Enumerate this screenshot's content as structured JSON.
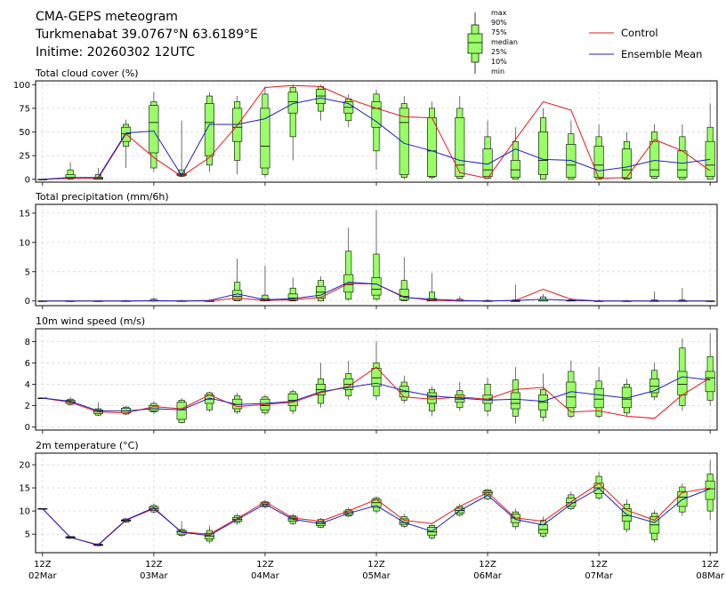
{
  "header": {
    "line1": "CMA-GEPS meteogram",
    "line2": "Turkmenabat 39.0767°N 63.6189°E",
    "line3": "Initime: 20260302 12UTC"
  },
  "legend": {
    "box_labels": [
      "max",
      "90%",
      "75%",
      "median",
      "25%",
      "10%",
      "min"
    ],
    "control_label": "Control",
    "mean_label": "Ensemble Mean"
  },
  "colors": {
    "box_fill": "#99ff66",
    "control": "#e31a1c",
    "mean": "#1f1fbf",
    "grid": "#cccccc"
  },
  "chart_data": {
    "type": "boxplot-meteogram",
    "x_unit": "hours since 2026-03-02 12UTC (6-hourly)",
    "xlim": [
      -1.5,
      145.5
    ],
    "x_ticks": [
      {
        "x": 0,
        "label1": "12Z",
        "label2": "02Mar"
      },
      {
        "x": 24,
        "label1": "12Z",
        "label2": "03Mar"
      },
      {
        "x": 48,
        "label1": "12Z",
        "label2": "04Mar"
      },
      {
        "x": 72,
        "label1": "12Z",
        "label2": "05Mar"
      },
      {
        "x": 96,
        "label1": "12Z",
        "label2": "06Mar"
      },
      {
        "x": 120,
        "label1": "12Z",
        "label2": "07Mar"
      },
      {
        "x": 144,
        "label1": "12Z",
        "label2": "08Mar"
      }
    ],
    "hours": [
      0,
      6,
      12,
      18,
      24,
      30,
      36,
      42,
      48,
      54,
      60,
      66,
      72,
      78,
      84,
      90,
      96,
      102,
      108,
      114,
      120,
      126,
      132,
      138,
      144
    ],
    "panels": [
      {
        "title": "Total cloud cover (%)",
        "ylim": [
          -3,
          104
        ],
        "yticks": [
          0,
          25,
          50,
          75,
          100
        ],
        "boxes": [
          [
            0,
            0,
            0,
            0,
            0,
            0,
            0
          ],
          [
            0,
            0,
            1,
            2,
            5,
            10,
            18
          ],
          [
            0,
            0,
            0,
            1,
            2,
            5,
            12
          ],
          [
            12,
            35,
            40,
            48,
            55,
            58,
            63
          ],
          [
            8,
            12,
            28,
            60,
            78,
            82,
            92
          ],
          [
            2,
            3,
            4,
            5,
            6,
            10,
            62
          ],
          [
            8,
            15,
            25,
            60,
            80,
            88,
            92
          ],
          [
            5,
            20,
            40,
            55,
            75,
            82,
            88
          ],
          [
            2,
            5,
            12,
            35,
            75,
            90,
            98
          ],
          [
            20,
            45,
            70,
            82,
            92,
            97,
            100
          ],
          [
            62,
            72,
            80,
            88,
            95,
            98,
            100
          ],
          [
            55,
            62,
            70,
            76,
            82,
            85,
            90
          ],
          [
            10,
            30,
            55,
            75,
            82,
            90,
            95
          ],
          [
            0,
            2,
            5,
            60,
            75,
            80,
            88
          ],
          [
            0,
            2,
            3,
            30,
            65,
            75,
            82
          ],
          [
            0,
            1,
            3,
            15,
            65,
            75,
            88
          ],
          [
            0,
            1,
            3,
            10,
            32,
            45,
            62
          ],
          [
            0,
            0,
            2,
            10,
            20,
            40,
            55
          ],
          [
            0,
            0,
            5,
            20,
            50,
            65,
            75
          ],
          [
            0,
            0,
            2,
            15,
            37,
            48,
            62
          ],
          [
            0,
            0,
            2,
            15,
            35,
            45,
            58
          ],
          [
            0,
            0,
            1,
            10,
            32,
            40,
            50
          ],
          [
            0,
            1,
            3,
            10,
            40,
            50,
            58
          ],
          [
            0,
            0,
            2,
            10,
            30,
            45,
            58
          ],
          [
            0,
            0,
            3,
            15,
            40,
            55,
            80
          ]
        ],
        "control": [
          0,
          1,
          1,
          48,
          23,
          3,
          23,
          57,
          97,
          99,
          98,
          85,
          75,
          66,
          65,
          7,
          1,
          42,
          82,
          73,
          1,
          2,
          42,
          30,
          9
        ],
        "mean": [
          0,
          2,
          2,
          49,
          51,
          4,
          58,
          58,
          64,
          80,
          86,
          80,
          61,
          38,
          30,
          20,
          16,
          32,
          21,
          20,
          9,
          13,
          20,
          17,
          21
        ]
      },
      {
        "title": "Total precipitation (mm/6h)",
        "ylim": [
          -0.8,
          16.5
        ],
        "yticks": [
          0,
          5,
          10,
          15
        ],
        "boxes": [
          [
            0,
            0,
            0,
            0,
            0,
            0,
            0
          ],
          [
            0,
            0,
            0,
            0,
            0,
            0,
            0.05
          ],
          [
            0,
            0,
            0,
            0,
            0,
            0,
            0.1
          ],
          [
            0,
            0,
            0,
            0,
            0,
            0.05,
            0.2
          ],
          [
            0,
            0,
            0,
            0,
            0.1,
            0.3,
            0.6
          ],
          [
            0,
            0,
            0,
            0,
            0,
            0.05,
            0.2
          ],
          [
            0,
            0,
            0,
            0,
            0,
            0,
            0.3
          ],
          [
            0,
            0,
            0.2,
            0.8,
            1.8,
            3.2,
            7.2
          ],
          [
            0,
            0,
            0,
            0.1,
            0.4,
            1,
            6
          ],
          [
            0,
            0,
            0.1,
            0.5,
            1.2,
            2.2,
            4
          ],
          [
            0,
            0,
            0.5,
            1.5,
            2.5,
            3.5,
            4.2
          ],
          [
            0,
            0.3,
            1.5,
            2.8,
            4.5,
            8.5,
            12.5
          ],
          [
            0,
            0.3,
            1,
            2,
            4,
            8,
            15.5
          ],
          [
            0,
            0,
            0.2,
            0.8,
            2,
            3.5,
            7.5
          ],
          [
            0,
            0,
            0,
            0.1,
            0.4,
            1.5,
            4.8
          ],
          [
            0,
            0,
            0,
            0,
            0.1,
            0.3,
            0.8
          ],
          [
            0,
            0,
            0,
            0,
            0,
            0.1,
            0.3
          ],
          [
            0,
            0,
            0,
            0,
            0,
            0.2,
            2.8
          ],
          [
            0,
            0,
            0,
            0,
            0.3,
            0.7,
            1.2
          ],
          [
            0,
            0,
            0,
            0,
            0.1,
            0.2,
            0.5
          ],
          [
            0,
            0,
            0,
            0,
            0,
            0,
            0.3
          ],
          [
            0,
            0,
            0,
            0,
            0,
            0,
            0.2
          ],
          [
            0,
            0,
            0,
            0,
            0,
            0.2,
            1.6
          ],
          [
            0,
            0,
            0,
            0,
            0,
            0.2,
            2.2
          ],
          [
            0,
            0,
            0,
            0,
            0,
            0,
            0.1
          ]
        ],
        "control": [
          0,
          0,
          0,
          0,
          0,
          0,
          0,
          0.5,
          0.1,
          0.2,
          0.6,
          3,
          2.9,
          0.7,
          0.1,
          0,
          0,
          0.1,
          2,
          0.3,
          0,
          0,
          0,
          0,
          0
        ],
        "mean": [
          0,
          0,
          0,
          0,
          0.05,
          0,
          0.1,
          1.2,
          0.2,
          0.4,
          1,
          3.2,
          2.9,
          0.6,
          0.3,
          0.1,
          0,
          0.1,
          0.3,
          0.1,
          0,
          0,
          0,
          0,
          0
        ]
      },
      {
        "title": "10m wind speed (m/s)",
        "ylim": [
          -0.3,
          9.2
        ],
        "yticks": [
          0,
          2,
          4,
          6,
          8
        ],
        "boxes": [
          [
            2.7,
            2.7,
            2.7,
            2.7,
            2.7,
            2.7,
            2.7
          ],
          [
            2,
            2.1,
            2.2,
            2.35,
            2.5,
            2.6,
            2.8
          ],
          [
            1,
            1.1,
            1.25,
            1.45,
            1.6,
            1.7,
            2.3
          ],
          [
            1.1,
            1.2,
            1.3,
            1.5,
            1.75,
            1.85,
            1.95
          ],
          [
            1.2,
            1.4,
            1.5,
            1.7,
            2,
            2.2,
            2.4
          ],
          [
            0.3,
            0.4,
            0.7,
            1.6,
            2.3,
            2.5,
            2.7
          ],
          [
            1.4,
            1.6,
            2.2,
            2.6,
            3,
            3.2,
            3.3
          ],
          [
            1.2,
            1.4,
            1.7,
            2.1,
            2.6,
            2.9,
            3.2
          ],
          [
            1.1,
            1.3,
            1.6,
            2,
            2.6,
            2.8,
            3
          ],
          [
            1.2,
            1.5,
            2,
            2.5,
            3.1,
            3.3,
            3.5
          ],
          [
            1.8,
            2.2,
            3,
            3.5,
            4,
            4.5,
            6
          ],
          [
            2.5,
            2.9,
            3.5,
            4,
            4.5,
            5,
            6.2
          ],
          [
            2.5,
            2.9,
            3.8,
            4.6,
            5.5,
            6,
            8
          ],
          [
            2.2,
            2.5,
            2.8,
            3.3,
            3.8,
            4.2,
            4.8
          ],
          [
            1,
            1.5,
            2.2,
            2.8,
            3.2,
            3.5,
            3.8
          ],
          [
            1.5,
            1.8,
            2.3,
            2.6,
            3,
            3.4,
            4.2
          ],
          [
            1,
            1.5,
            2.2,
            2.6,
            3,
            4,
            4.6
          ],
          [
            0.3,
            1,
            1.7,
            2.2,
            3.2,
            4.4,
            5.6
          ],
          [
            0.5,
            0.9,
            1.6,
            2.3,
            3,
            3.5,
            5
          ],
          [
            0.8,
            1,
            1.8,
            2.8,
            4.2,
            5.2,
            6.2
          ],
          [
            0.8,
            1,
            1.8,
            2.6,
            3.6,
            4.3,
            5.6
          ],
          [
            1,
            1.3,
            1.8,
            2.6,
            3.7,
            4,
            4.5
          ],
          [
            2.5,
            2.8,
            3.2,
            3.8,
            4.5,
            5.3,
            6
          ],
          [
            1.5,
            2,
            3,
            4,
            5.2,
            7.4,
            8.3
          ],
          [
            2,
            2.5,
            3.3,
            4.6,
            5.2,
            6.6,
            8.8
          ]
        ],
        "control": [
          2.7,
          2.3,
          1.4,
          1.3,
          1.9,
          1.7,
          3,
          1.9,
          2.1,
          2.3,
          3.2,
          3.8,
          5.6,
          2.8,
          2.6,
          2.8,
          2.6,
          3.5,
          3.7,
          1.4,
          1.5,
          1,
          0.8,
          3,
          4.6
        ],
        "mean": [
          2.7,
          2.4,
          1.5,
          1.5,
          1.7,
          1.6,
          2.7,
          2.1,
          2.2,
          2.4,
          3.3,
          3.7,
          4.1,
          3.4,
          2.9,
          2.7,
          2.5,
          2.6,
          2.4,
          3.3,
          3,
          2.7,
          3.4,
          4.7,
          4.4
        ]
      },
      {
        "title": "2m temperature (°C)",
        "ylim": [
          1,
          22.5
        ],
        "yticks": [
          5,
          10,
          15,
          20
        ],
        "boxes": [
          [
            10.5,
            10.5,
            10.5,
            10.5,
            10.5,
            10.5,
            10.5
          ],
          [
            4,
            4.1,
            4.2,
            4.3,
            4.45,
            4.5,
            4.6
          ],
          [
            2.4,
            2.5,
            2.6,
            2.7,
            2.8,
            2.9,
            3
          ],
          [
            7.4,
            7.6,
            7.8,
            8,
            8.1,
            8.3,
            8.5
          ],
          [
            9.5,
            9.8,
            10.1,
            10.5,
            10.9,
            11.2,
            11.6
          ],
          [
            4.4,
            4.7,
            5,
            5.5,
            5.8,
            6,
            7.8
          ],
          [
            3,
            3.5,
            4,
            4.6,
            5.2,
            5.8,
            6.8
          ],
          [
            7,
            7.5,
            7.8,
            8.2,
            8.6,
            9,
            9.5
          ],
          [
            10.6,
            10.9,
            11.1,
            11.5,
            11.8,
            12,
            12.5
          ],
          [
            7,
            7.3,
            7.8,
            8.3,
            8.7,
            9,
            9.5
          ],
          [
            6.3,
            6.5,
            6.9,
            7.3,
            7.7,
            8.2,
            8.5
          ],
          [
            8.6,
            8.9,
            9.2,
            9.6,
            10,
            10.3,
            10.8
          ],
          [
            9.5,
            10,
            10.8,
            11.8,
            12.5,
            12.8,
            13.2
          ],
          [
            6.3,
            6.7,
            7.1,
            7.5,
            8.3,
            8.8,
            9.4
          ],
          [
            3.8,
            4.2,
            4.8,
            5.5,
            6.5,
            6.9,
            7.2
          ],
          [
            8.8,
            9.1,
            9.6,
            10.1,
            10.6,
            11,
            11.6
          ],
          [
            12.3,
            12.6,
            13.5,
            14,
            14.3,
            14.6,
            14.8
          ],
          [
            6,
            6.6,
            7.5,
            8.5,
            9.3,
            9.8,
            10.5
          ],
          [
            4.2,
            4.6,
            5.2,
            6,
            7,
            8,
            8.8
          ],
          [
            10.2,
            10.5,
            11,
            11.8,
            12.8,
            13.5,
            14.2
          ],
          [
            12.3,
            12.8,
            13.8,
            15,
            16,
            17.5,
            18.5
          ],
          [
            5.4,
            6,
            7.8,
            9,
            10.5,
            11.5,
            12.5
          ],
          [
            3.2,
            3.8,
            5.2,
            7,
            8.8,
            9.5,
            10.2
          ],
          [
            9,
            9.8,
            11,
            13,
            14.2,
            15.2,
            16
          ],
          [
            8,
            10,
            12.5,
            14.8,
            16.5,
            18,
            21
          ]
        ],
        "control": [
          10.5,
          4.3,
          2.6,
          8,
          10.5,
          5.5,
          5,
          8.4,
          12,
          8.5,
          7.8,
          10,
          12.5,
          8,
          7.3,
          11,
          14,
          8.5,
          7.8,
          12,
          16,
          10.2,
          8,
          14,
          15
        ],
        "mean": [
          10.5,
          4.3,
          2.7,
          8.1,
          10.7,
          5.4,
          4.7,
          8.2,
          11.5,
          8.2,
          7.3,
          9.5,
          11.2,
          7.5,
          5.6,
          10.1,
          13.4,
          8.2,
          7,
          11.5,
          14.9,
          9.2,
          7.5,
          12.5,
          14.8
        ]
      }
    ]
  }
}
